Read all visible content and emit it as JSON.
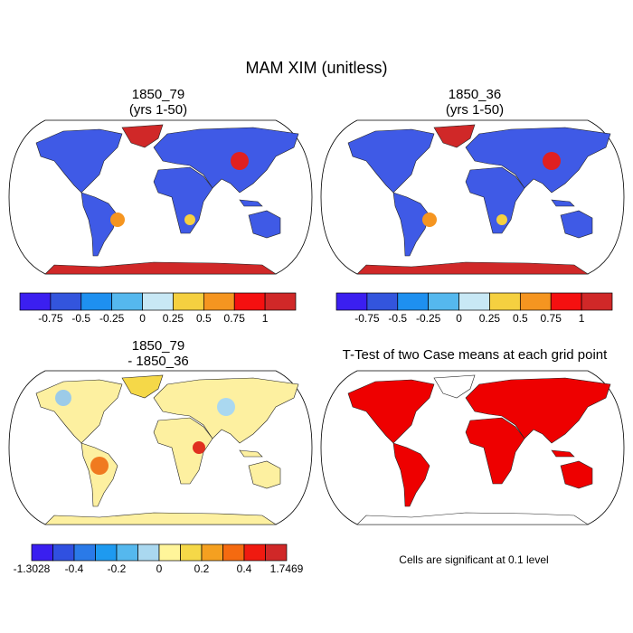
{
  "title": "MAM XIM (unitless)",
  "panels": [
    {
      "title_lines": [
        "1850_79",
        "(yrs 1-50)"
      ]
    },
    {
      "title_lines": [
        "1850_36",
        "(yrs 1-50)"
      ]
    },
    {
      "title_lines": [
        "1850_79",
        "- 1850_36"
      ]
    },
    {
      "title_lines": [
        "T-Test of two Case means at each grid point"
      ],
      "note": "Cells are significant at 0.1 level"
    }
  ],
  "colorbars": [
    {
      "colors": [
        "#3b1ff0",
        "#3355dd",
        "#1e90f0",
        "#55b8ee",
        "#c8e8f5",
        "#f5d040",
        "#f59520",
        "#f51010",
        "#d02828"
      ],
      "labels": [
        "-0.75",
        "-0.5",
        "-0.25",
        "0",
        "0.25",
        "0.5",
        "0.75",
        "1"
      ]
    },
    {
      "colors": [
        "#3b1ff0",
        "#3355dd",
        "#1e90f0",
        "#55b8ee",
        "#c8e8f5",
        "#f5d040",
        "#f59520",
        "#f51010",
        "#d02828"
      ],
      "labels": [
        "-0.75",
        "-0.5",
        "-0.25",
        "0",
        "0.25",
        "0.5",
        "0.75",
        "1"
      ]
    },
    {
      "colors": [
        "#3a1ff0",
        "#3050e0",
        "#2a7ae8",
        "#1e9af0",
        "#55b8ee",
        "#aad8f0",
        "#fff59a",
        "#f5d848",
        "#f5a020",
        "#f56a10",
        "#f01a10",
        "#d02828"
      ],
      "labels": [
        "-1.3028",
        "-0.4",
        "-0.2",
        "0",
        "0.2",
        "0.4",
        "1.7469"
      ]
    }
  ]
}
